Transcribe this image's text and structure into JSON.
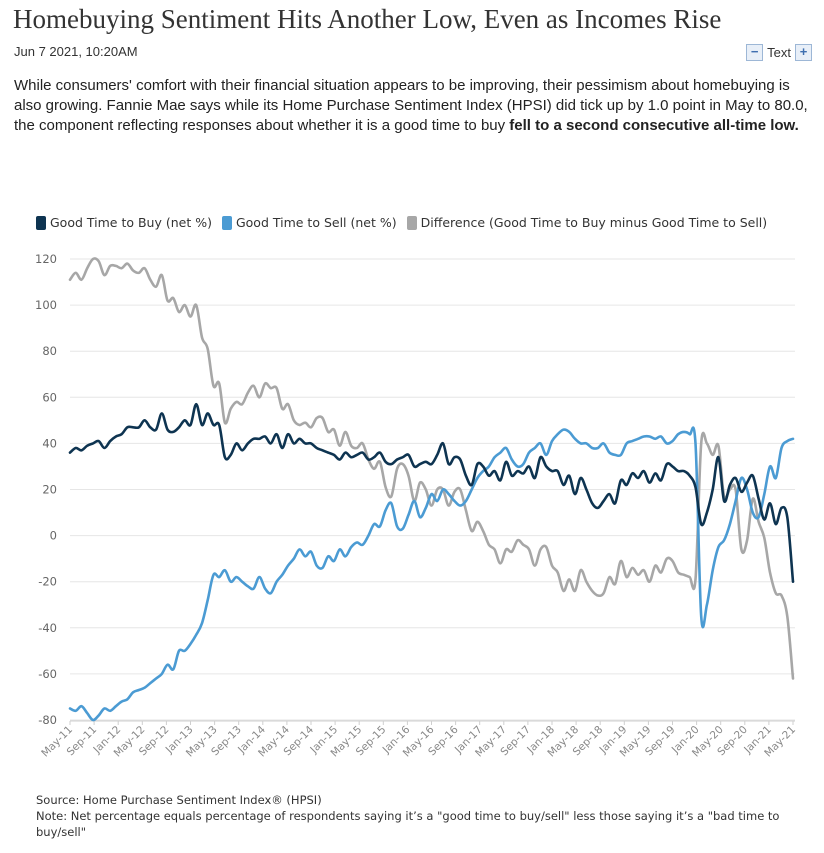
{
  "article": {
    "headline": "Homebuying Sentiment Hits Another Low, Even as Incomes Rise",
    "dateline": "Jun 7 2021, 10:20AM",
    "text_size_label": "Text",
    "decrease_label": "−",
    "increase_label": "+",
    "lede_plain": "While consumers' comfort with their financial situation appears to be improving, their pessimism about homebuying is also growing. Fannie Mae says while its Home Purchase Sentiment Index (HPSI) did tick up by 1.0 point in May to 80.0, the component reflecting responses about whether it is a good time to buy ",
    "lede_bold": "fell to a second consecutive all-time low."
  },
  "chart_data": {
    "type": "line",
    "xlabel": "",
    "ylabel": "",
    "ylim": [
      -80,
      120
    ],
    "yticks": [
      120,
      100,
      80,
      60,
      40,
      20,
      0,
      -20,
      -40,
      -60,
      -80
    ],
    "xticks": [
      "May-11",
      "Sep-11",
      "Jan-12",
      "May-12",
      "Sep-12",
      "Jan-13",
      "May-13",
      "Sep-13",
      "Jan-14",
      "May-14",
      "Sep-14",
      "Jan-15",
      "May-15",
      "Sep-15",
      "Jan-16",
      "May-16",
      "Sep-16",
      "Jan-17",
      "May-17",
      "Sep-17",
      "Jan-18",
      "May-18",
      "Sep-18",
      "Jan-19",
      "May-19",
      "Sep-19",
      "Jan-20",
      "May-20",
      "Sep-20",
      "Jan-21",
      "May-21"
    ],
    "grid": true,
    "legend_position": "top-left",
    "x_start": "May-11",
    "x_end": "May-21",
    "series": [
      {
        "name": "Good Time to Buy (net %)",
        "color": "#0e3451",
        "values": [
          36,
          38,
          37,
          39,
          40,
          41,
          38,
          41,
          43,
          44,
          47,
          47,
          47,
          50,
          47,
          46,
          53,
          46,
          45,
          47,
          50,
          48,
          57,
          48,
          53,
          48,
          48,
          34,
          35,
          40,
          37,
          40,
          42,
          42,
          43,
          40,
          44,
          38,
          44,
          40,
          42,
          40,
          40,
          38,
          37,
          36,
          35,
          33,
          36,
          34,
          35,
          36,
          33,
          34,
          36,
          32,
          31,
          33,
          34,
          35,
          30,
          31,
          32,
          31,
          35,
          40,
          31,
          34,
          33,
          26,
          22,
          31,
          30,
          26,
          28,
          24,
          32,
          26,
          28,
          27,
          30,
          25,
          34,
          30,
          28,
          28,
          22,
          26,
          18,
          25,
          20,
          14,
          12,
          15,
          18,
          14,
          24,
          22,
          27,
          25,
          28,
          23,
          27,
          24,
          31,
          30,
          28,
          28,
          26,
          21,
          5,
          10,
          20,
          34,
          15,
          22,
          25,
          19,
          23,
          26,
          16,
          7,
          14,
          5,
          12,
          8,
          -20
        ]
      },
      {
        "name": "Good Time to Sell (net %)",
        "color": "#4b9bd3",
        "values": [
          -75,
          -76,
          -74,
          -77,
          -80,
          -78,
          -75,
          -76,
          -74,
          -72,
          -71,
          -68,
          -67,
          -66,
          -64,
          -62,
          -60,
          -56,
          -58,
          -50,
          -50,
          -47,
          -43,
          -38,
          -28,
          -17,
          -18,
          -15,
          -20,
          -18,
          -20,
          -22,
          -23,
          -18,
          -23,
          -25,
          -20,
          -17,
          -13,
          -10,
          -6,
          -9,
          -7,
          -13,
          -14,
          -9,
          -11,
          -6,
          -9,
          -5,
          -3,
          -4,
          0,
          5,
          4,
          11,
          14,
          4,
          3,
          9,
          15,
          8,
          12,
          18,
          15,
          20,
          18,
          15,
          13,
          15,
          20,
          25,
          28,
          30,
          34,
          36,
          38,
          33,
          30,
          31,
          36,
          38,
          40,
          35,
          41,
          44,
          46,
          45,
          42,
          40,
          40,
          38,
          38,
          40,
          36,
          35,
          35,
          40,
          41,
          42,
          43,
          43,
          42,
          43,
          40,
          41,
          44,
          45,
          44,
          40,
          -35,
          -30,
          -15,
          -5,
          -2,
          5,
          15,
          25,
          20,
          10,
          8,
          18,
          30,
          25,
          38,
          41,
          42
        ]
      },
      {
        "name": "Difference (Good Time to Buy minus Good Time to Sell)",
        "color": "#a7a7a7",
        "values": [
          111,
          114,
          111,
          116,
          120,
          119,
          113,
          117,
          117,
          116,
          118,
          115,
          114,
          116,
          111,
          108,
          113,
          102,
          103,
          97,
          100,
          95,
          100,
          86,
          81,
          65,
          66,
          49,
          55,
          58,
          57,
          62,
          65,
          60,
          66,
          64,
          64,
          55,
          57,
          50,
          48,
          49,
          47,
          51,
          51,
          45,
          46,
          39,
          45,
          39,
          38,
          40,
          33,
          29,
          32,
          21,
          17,
          29,
          31,
          26,
          15,
          23,
          20,
          13,
          20,
          20,
          13,
          19,
          20,
          11,
          2,
          6,
          2,
          -4,
          -6,
          -12,
          -6,
          -7,
          -2,
          -4,
          -6,
          -13,
          -6,
          -5,
          -13,
          -16,
          -24,
          -19,
          -24,
          -15,
          -20,
          -24,
          -26,
          -25,
          -18,
          -21,
          -11,
          -18,
          -14,
          -17,
          -15,
          -20,
          -13,
          -16,
          -10,
          -11,
          -16,
          -17,
          -18,
          -19,
          40,
          40,
          35,
          39,
          17,
          20,
          20,
          -6,
          -2,
          16,
          6,
          -1,
          -16,
          -25,
          -26,
          -35,
          -62
        ]
      }
    ]
  },
  "footnote": {
    "source": "Source: Home Purchase Sentiment Index® (HPSI)",
    "note": "Note: Net percentage equals percentage of respondents saying it’s a \"good time to buy/sell\" less those saying it’s a \"bad time to buy/sell\""
  }
}
